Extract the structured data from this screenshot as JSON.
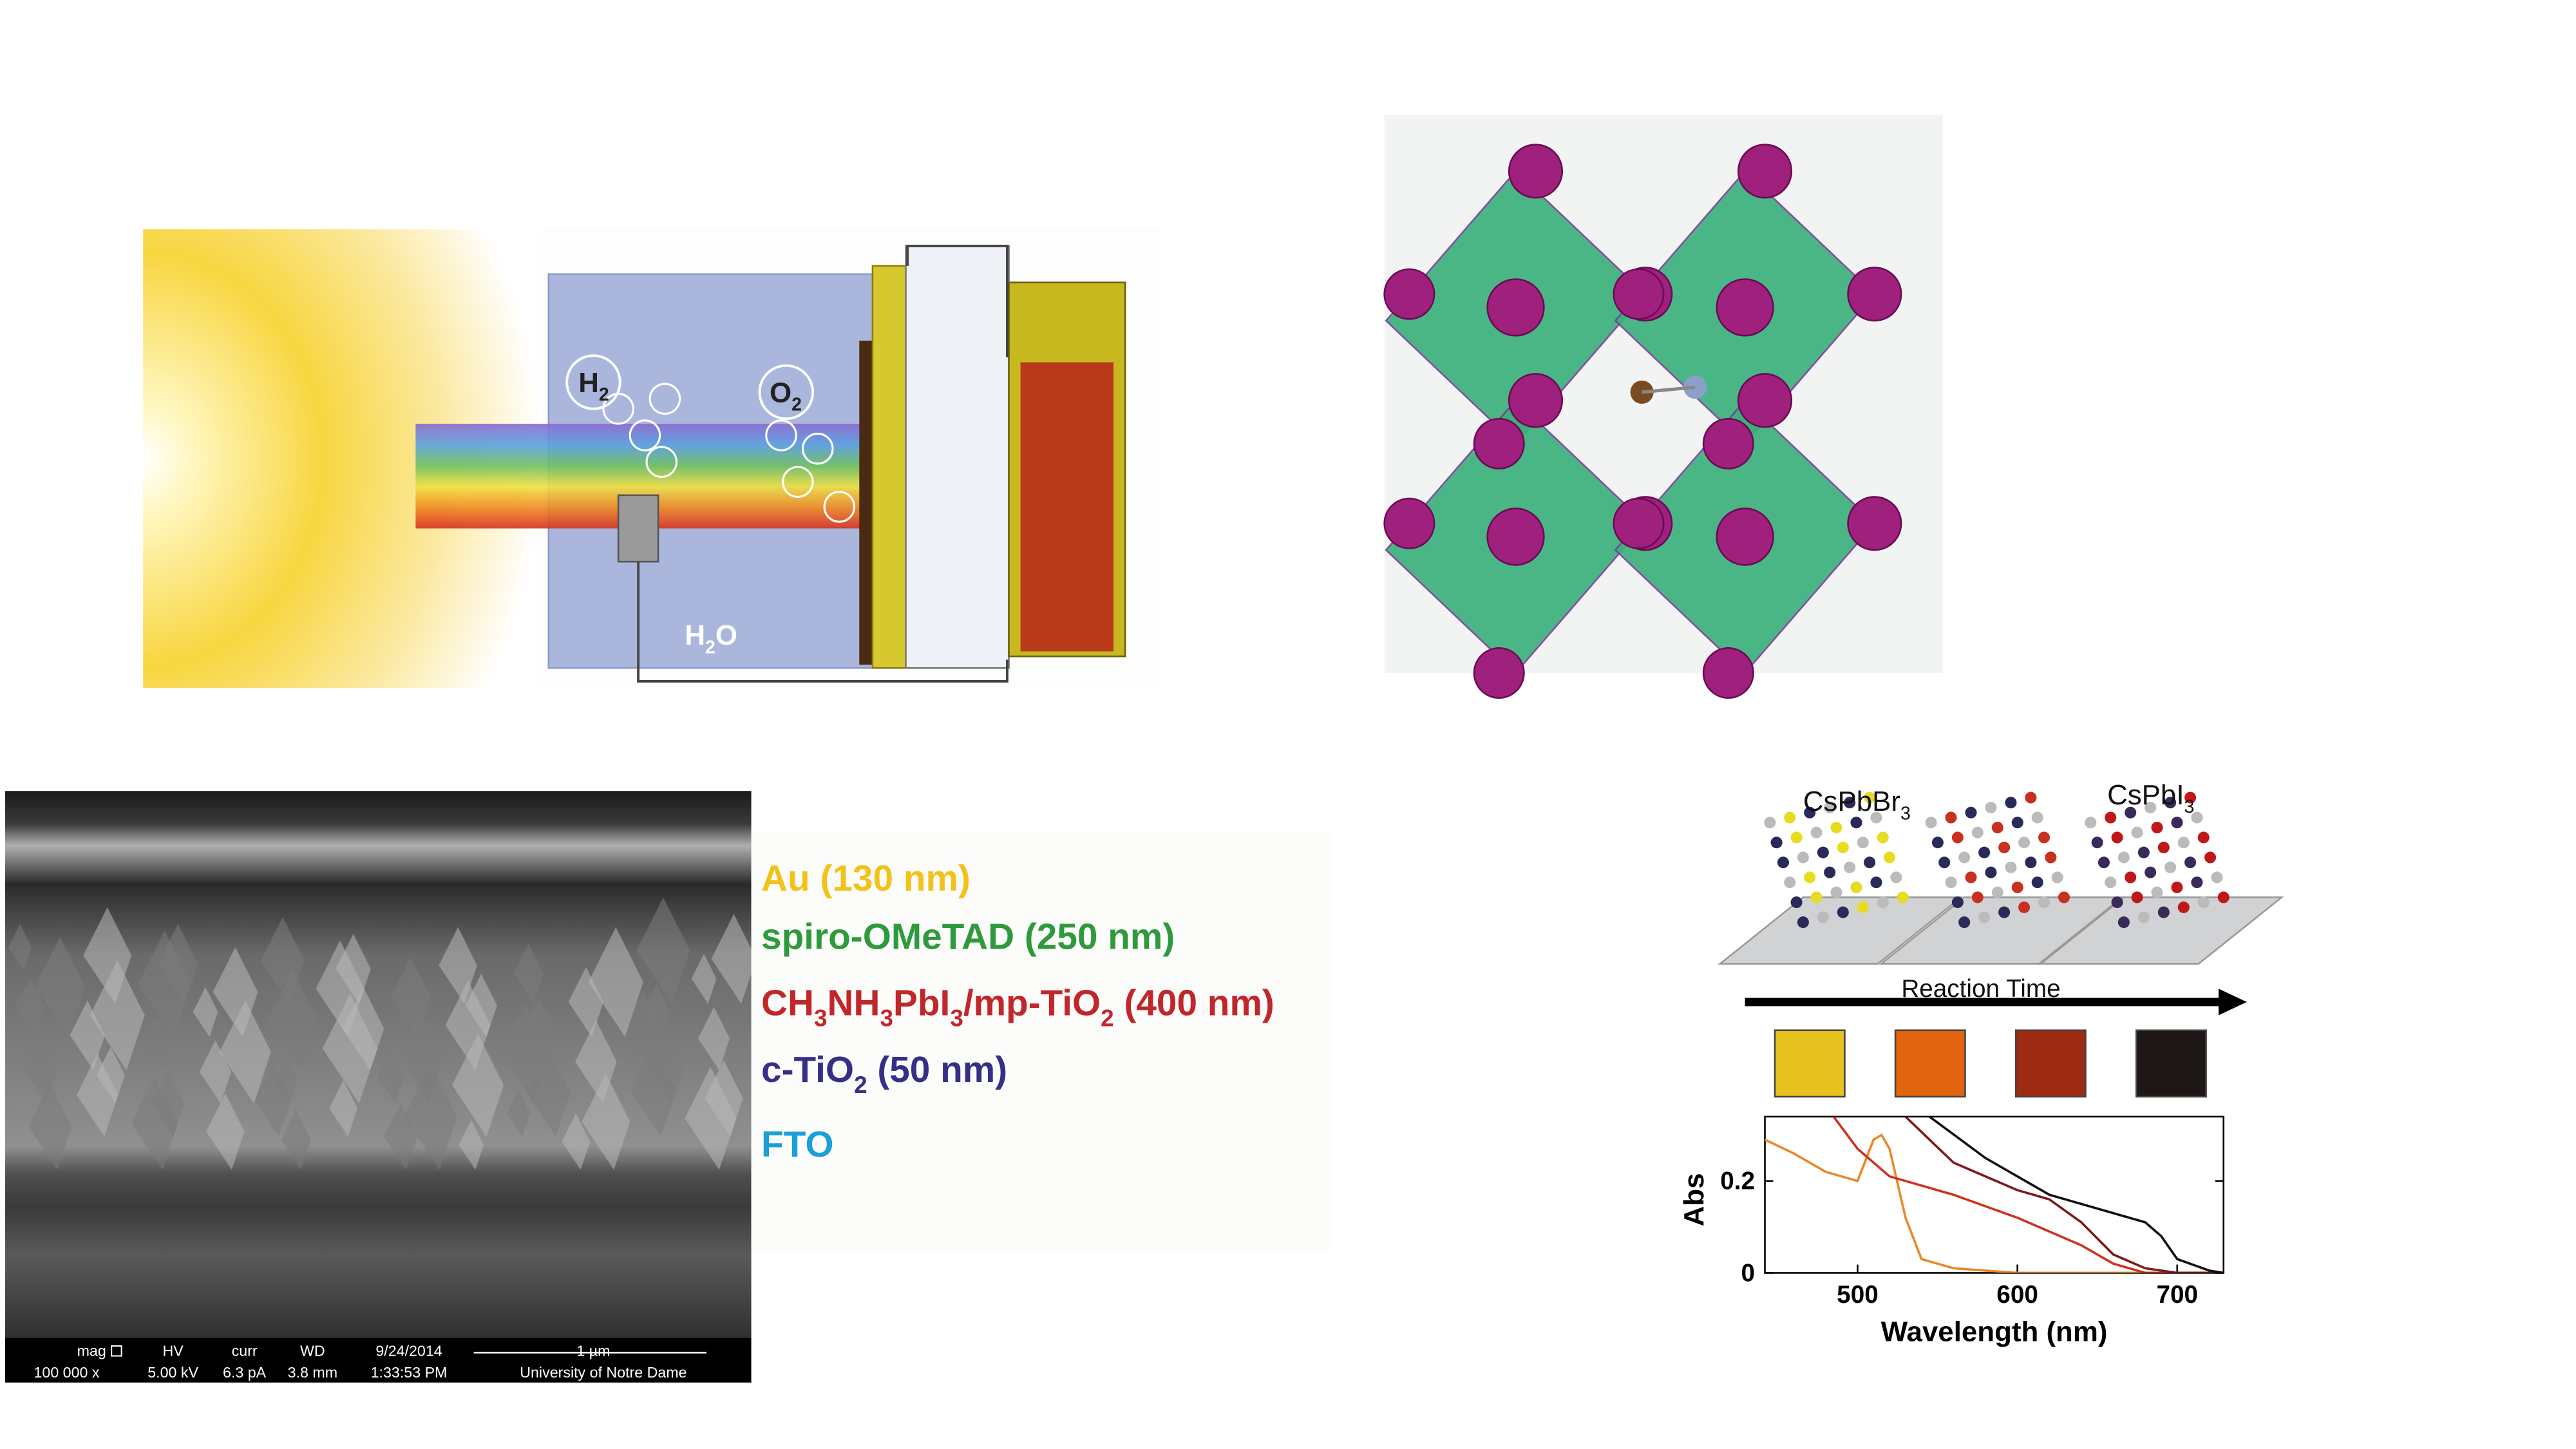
{
  "solar_cell": {
    "labels": [
      {
        "segments": [
          "H",
          "2"
        ]
      },
      {
        "segments": [
          "O",
          "2"
        ]
      },
      {
        "segments": [
          "H",
          "2",
          "O"
        ]
      }
    ]
  },
  "sem": {
    "header": [
      "mag",
      "HV",
      "curr",
      "WD",
      "9/24/2014",
      "1 µm"
    ],
    "values": [
      "100 000 x",
      "5.00 kV",
      "6.3 pA",
      "3.8 mm",
      "1:33:53 PM",
      "University of Notre Dame"
    ]
  },
  "layers": [
    {
      "segments": [
        "Au (130 nm)"
      ],
      "color": "#f2c21b"
    },
    {
      "segments": [
        "spiro-OMeTAD (250 nm)"
      ],
      "color": "#2f9a3c"
    },
    {
      "segments": [
        "CH",
        "3",
        "NH",
        "3",
        "PbI",
        "3",
        "/mp-TiO",
        "2",
        " (400 nm)"
      ],
      "color": "#c0272b"
    },
    {
      "segments": [
        "c-TiO",
        "2",
        " (50 nm)"
      ],
      "color": "#352f86"
    },
    {
      "segments": [
        "FTO"
      ],
      "color": "#1c9fd9"
    }
  ],
  "nanocrystals": {
    "labels": [
      {
        "segments": [
          "CsPbBr",
          "3"
        ]
      },
      {
        "segments": [
          "CsPbI",
          "3"
        ]
      }
    ],
    "arrow_label": "Reaction Time",
    "sample_colors": [
      "#e6c21f",
      "#e2640f",
      "#9e2a12",
      "#1d1715"
    ]
  },
  "chart_data": {
    "type": "line",
    "xlabel": "Wavelength (nm)",
    "ylabel": "Abs",
    "xlim": [
      442,
      729
    ],
    "ylim": [
      0,
      0.34
    ],
    "xticks": [
      500,
      600,
      700
    ],
    "yticks": [
      0,
      0.2
    ],
    "series": [
      {
        "color": "#e8892a",
        "x": [
          442,
          460,
          480,
          500,
          510,
          515,
          520,
          530,
          540,
          560,
          600,
          729
        ],
        "values": [
          0.29,
          0.26,
          0.22,
          0.2,
          0.29,
          0.3,
          0.27,
          0.12,
          0.03,
          0.01,
          0,
          0
        ]
      },
      {
        "color": "#d03020",
        "x": [
          485,
          500,
          520,
          560,
          600,
          640,
          660,
          680,
          729
        ],
        "values": [
          0.34,
          0.27,
          0.21,
          0.17,
          0.12,
          0.06,
          0.02,
          0,
          0
        ]
      },
      {
        "color": "#7e1a1a",
        "x": [
          530,
          560,
          600,
          620,
          640,
          660,
          680,
          700,
          729
        ],
        "values": [
          0.34,
          0.24,
          0.18,
          0.16,
          0.11,
          0.04,
          0.01,
          0,
          0
        ]
      },
      {
        "color": "#111111",
        "x": [
          545,
          580,
          620,
          660,
          680,
          690,
          700,
          720,
          729
        ],
        "values": [
          0.34,
          0.25,
          0.17,
          0.13,
          0.11,
          0.08,
          0.03,
          0.005,
          0
        ]
      }
    ]
  }
}
